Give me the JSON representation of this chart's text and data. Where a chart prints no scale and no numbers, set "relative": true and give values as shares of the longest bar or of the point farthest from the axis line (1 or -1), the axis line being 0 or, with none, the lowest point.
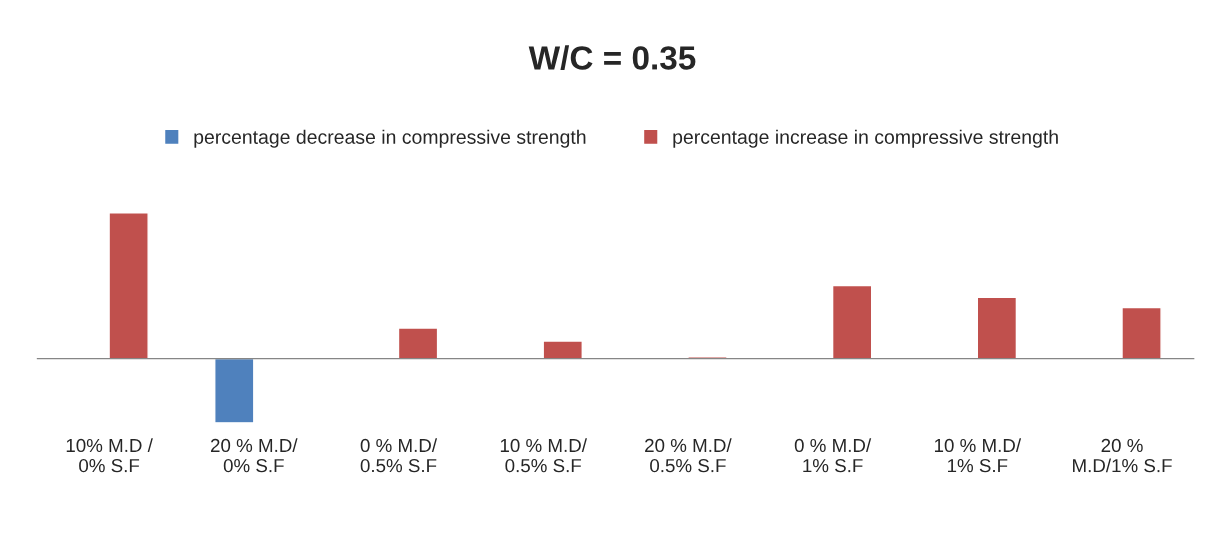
{
  "chart_data": {
    "type": "bar",
    "title": "W/C = 0.35",
    "relative": true,
    "legend": "top",
    "categories": [
      "10% M.D / 0% S.F",
      "20 % M.D/ 0% S.F",
      "0 % M.D/ 0.5% S.F",
      "10 % M.D/ 0.5% S.F",
      "20 % M.D/ 0.5% S.F",
      "0 % M.D/ 1% S.F",
      "10 % M.D/ 1% S.F",
      "20 % M.D/1% S.F"
    ],
    "series": [
      {
        "name": "percentage decrease in compressive strength",
        "color": "#4f81bd",
        "values": [
          null,
          -0.44,
          null,
          null,
          null,
          null,
          null,
          null
        ]
      },
      {
        "name": "percentage increase in compressive strength",
        "color": "#c0504d",
        "values": [
          1,
          null,
          0.21,
          0.12,
          0.013,
          0.5,
          0.42,
          0.35
        ]
      }
    ]
  }
}
